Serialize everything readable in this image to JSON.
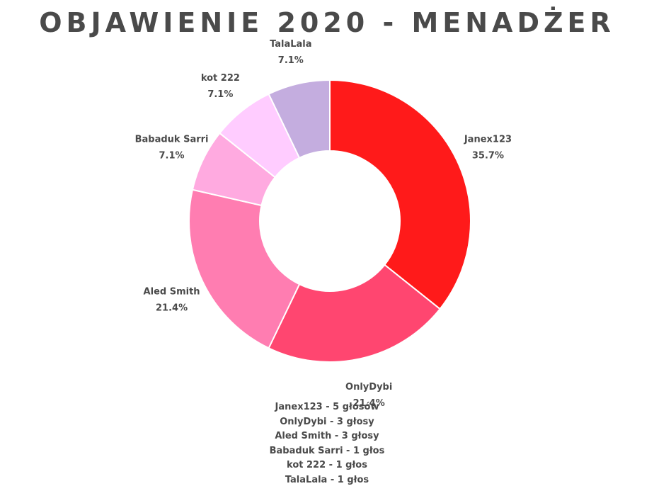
{
  "title": "OBJAWIENIE 2020 - MENADŻER",
  "chart_data": {
    "type": "pie",
    "title": "OBJAWIENIE 2020 - MENADŻER",
    "donut": true,
    "slices": [
      {
        "name": "Janex123",
        "value": 5,
        "percent_label": "35.7%",
        "color": "#ff1a1a"
      },
      {
        "name": "OnlyDybi",
        "value": 3,
        "percent_label": "21.4%",
        "color": "#ff4670"
      },
      {
        "name": "Aled Smith",
        "value": 3,
        "percent_label": "21.4%",
        "color": "#ff7db1"
      },
      {
        "name": "Babaduk Sarri",
        "value": 1,
        "percent_label": "7.1%",
        "color": "#ffaae0"
      },
      {
        "name": "kot 222",
        "value": 1,
        "percent_label": "7.1%",
        "color": "#ffccff"
      },
      {
        "name": "TalaLala",
        "value": 1,
        "percent_label": "7.1%",
        "color": "#c4addf"
      }
    ]
  },
  "summary": [
    "Janex123 - 5 głosów",
    "OnlyDybi - 3 głosy",
    "Aled Smith - 3 głosy",
    "Babaduk Sarri - 1 głos",
    "kot 222 - 1 głos",
    "TalaLala - 1 głos"
  ]
}
